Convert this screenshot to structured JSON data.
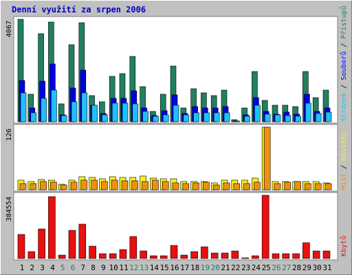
{
  "title": "Denní využití za srpen 2006",
  "colors": {
    "background": "#c0c0c0",
    "panel": "#ffffff",
    "title": "#0000cc",
    "pristupu": "#208060",
    "souboru": "#0000e0",
    "stranek": "#20c0ff",
    "navstev": "#f0f020",
    "mist": "#f09010",
    "kbytu": "#e81010",
    "weekend": "#208060",
    "weekday": "#000000",
    "separator": "#000000"
  },
  "chart_data": [
    {
      "type": "bar",
      "panel": "top",
      "y_max_label": "4067",
      "ylim": [
        0,
        4067
      ],
      "categories": [
        "1",
        "2",
        "3",
        "4",
        "5",
        "6",
        "7",
        "8",
        "9",
        "10",
        "11",
        "12",
        "13",
        "14",
        "15",
        "16",
        "17",
        "18",
        "19",
        "20",
        "21",
        "22",
        "23",
        "24",
        "25",
        "26",
        "27",
        "28",
        "29",
        "30",
        "31"
      ],
      "weekend_days": [
        "5",
        "6",
        "12",
        "13",
        "19",
        "20",
        "26",
        "27"
      ],
      "series": [
        {
          "name": "Přístupů",
          "color": "#208060",
          "values": [
            4067,
            1100,
            3500,
            3950,
            700,
            3050,
            3920,
            1050,
            800,
            1800,
            1900,
            2600,
            1400,
            400,
            1100,
            2200,
            550,
            1300,
            1150,
            1050,
            1250,
            80,
            550,
            2000,
            850,
            650,
            650,
            600,
            2000,
            950,
            1250
          ]
        },
        {
          "name": "Souborů",
          "color": "#0000e0",
          "values": [
            1650,
            550,
            1600,
            2300,
            280,
            1350,
            2050,
            650,
            330,
            920,
            920,
            1230,
            550,
            250,
            440,
            1070,
            330,
            590,
            550,
            550,
            600,
            40,
            280,
            950,
            420,
            300,
            380,
            300,
            1100,
            420,
            540
          ]
        },
        {
          "name": "Stránek",
          "color": "#20c0ff",
          "values": [
            1150,
            350,
            920,
            1250,
            250,
            800,
            1150,
            650,
            270,
            750,
            750,
            700,
            400,
            210,
            280,
            650,
            270,
            360,
            360,
            360,
            360,
            30,
            230,
            650,
            290,
            270,
            250,
            230,
            750,
            330,
            380
          ]
        }
      ],
      "legend": [
        "Přístupů",
        "Souborů",
        "Stránek"
      ]
    },
    {
      "type": "bar",
      "panel": "middle",
      "y_max_label": "126",
      "ylim": [
        0,
        126
      ],
      "categories": [
        "1",
        "2",
        "3",
        "4",
        "5",
        "6",
        "7",
        "8",
        "9",
        "10",
        "11",
        "12",
        "13",
        "14",
        "15",
        "16",
        "17",
        "18",
        "19",
        "20",
        "21",
        "22",
        "23",
        "24",
        "25",
        "26",
        "27",
        "28",
        "29",
        "30",
        "31"
      ],
      "series": [
        {
          "name": "Návštěv",
          "color": "#f0f020",
          "values": [
            20,
            16,
            21,
            20,
            11,
            20,
            26,
            25,
            22,
            26,
            25,
            25,
            27,
            23,
            22,
            22,
            16,
            16,
            16,
            14,
            19,
            20,
            20,
            23,
            126,
            17,
            17,
            17,
            17,
            17,
            14
          ]
        },
        {
          "name": "Míst",
          "color": "#f09010",
          "values": [
            13,
            13,
            16,
            15,
            9,
            15,
            19,
            19,
            16,
            19,
            18,
            18,
            17,
            19,
            16,
            14,
            13,
            14,
            15,
            10,
            14,
            12,
            12,
            15,
            126,
            13,
            15,
            17,
            13,
            13,
            13
          ]
        }
      ],
      "legend": [
        "Míst",
        "Návštěv"
      ]
    },
    {
      "type": "bar",
      "panel": "bottom",
      "y_max_label": "384554",
      "ylim": [
        0,
        384554
      ],
      "categories": [
        "1",
        "2",
        "3",
        "4",
        "5",
        "6",
        "7",
        "8",
        "9",
        "10",
        "11",
        "12",
        "13",
        "14",
        "15",
        "16",
        "17",
        "18",
        "19",
        "20",
        "21",
        "22",
        "23",
        "24",
        "25",
        "26",
        "27",
        "28",
        "29",
        "30",
        "31"
      ],
      "series": [
        {
          "name": "Kbytů",
          "color": "#e81010",
          "values": [
            145000,
            40000,
            180000,
            375000,
            20000,
            170000,
            210000,
            75000,
            28000,
            28000,
            55000,
            135000,
            45000,
            18000,
            18000,
            80000,
            20000,
            40000,
            72000,
            35000,
            35000,
            45000,
            3000,
            18000,
            384554,
            30000,
            28000,
            28000,
            95000,
            45000,
            45000
          ]
        }
      ],
      "legend": [
        "Kbytů"
      ]
    }
  ]
}
